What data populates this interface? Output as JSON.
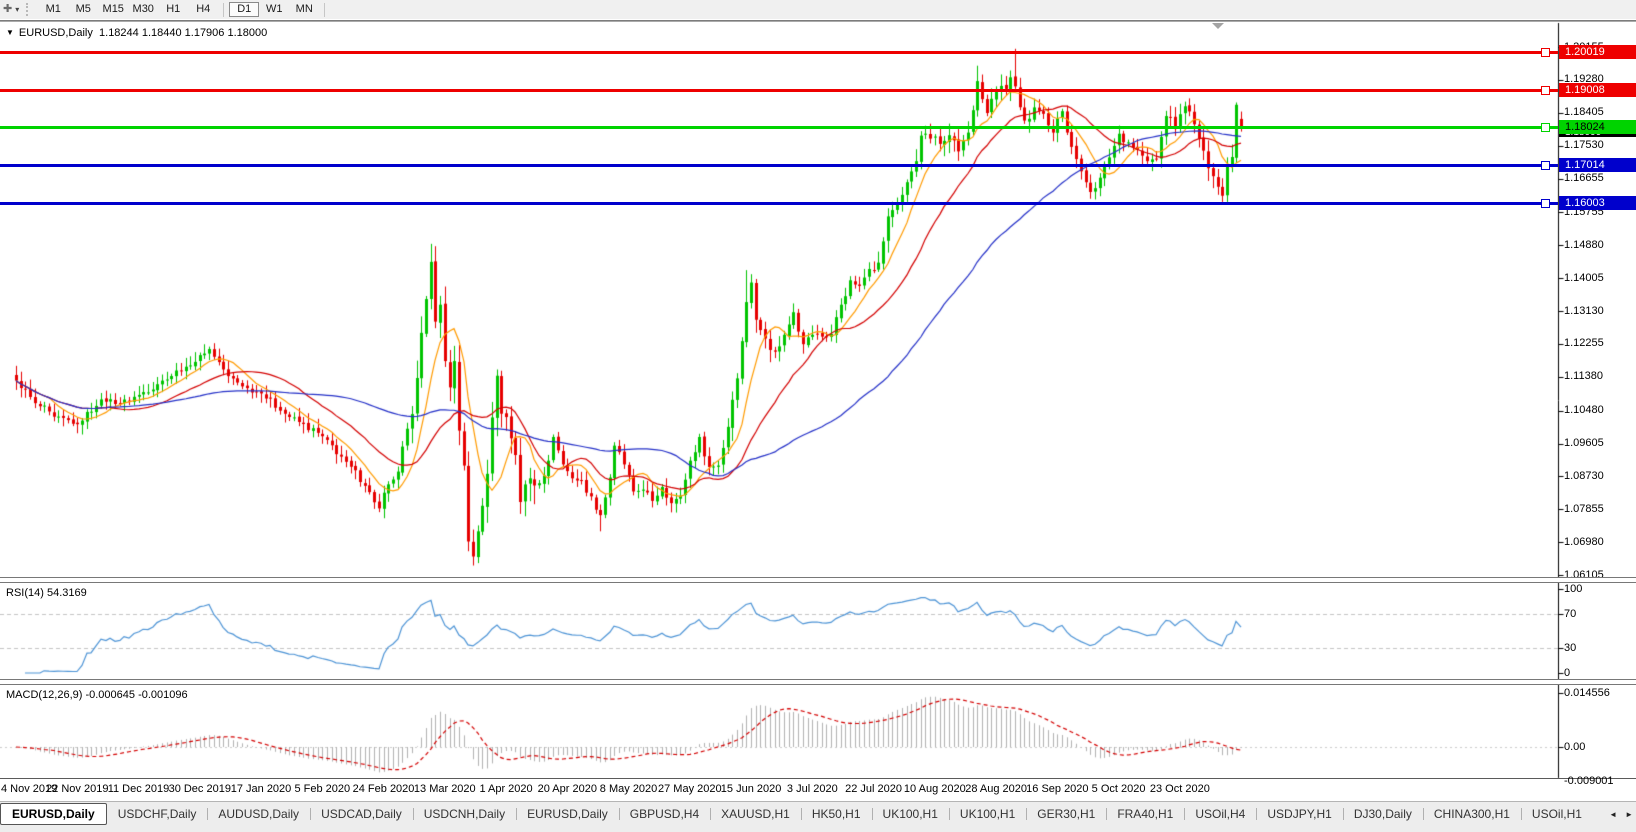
{
  "toolbar": {
    "cursor_tool_glyph": "✚",
    "dropdown_caret": "▾",
    "timeframes": [
      "M1",
      "M5",
      "M15",
      "M30",
      "H1",
      "H4",
      "D1",
      "W1",
      "MN"
    ],
    "selected_timeframe": "D1"
  },
  "main_chart": {
    "collapse_caret": "▼",
    "symbol": "EURUSD,Daily",
    "ohlc_text": "1.18244 1.18440 1.17906 1.18000",
    "bid_badge": "1.18000",
    "price_ticks": [
      "1.20155",
      "1.19280",
      "1.18405",
      "1.17530",
      "1.16655",
      "1.15755",
      "1.14880",
      "1.14005",
      "1.13130",
      "1.12255",
      "1.11380",
      "1.10480",
      "1.09605",
      "1.08730",
      "1.07855",
      "1.06980",
      "1.06105"
    ],
    "levels": [
      {
        "price": 1.20019,
        "label": "1.20019",
        "color": "#ee0000",
        "text_color": "#ffffff"
      },
      {
        "price": 1.19008,
        "label": "1.19008",
        "color": "#ee0000",
        "text_color": "#ffffff"
      },
      {
        "price": 1.18024,
        "label": "1.18024",
        "color": "#00d300",
        "text_color": "#000000",
        "bid_underlay": true
      },
      {
        "price": 1.17014,
        "label": "1.17014",
        "color": "#0000cc",
        "text_color": "#ffffff"
      },
      {
        "price": 1.16003,
        "label": "1.16003",
        "color": "#0000cc",
        "text_color": "#ffffff"
      }
    ]
  },
  "chart_data": {
    "type": "candlestick",
    "symbol": "EURUSD",
    "timeframe": "Daily",
    "bar_count": 261,
    "bars_per_label": 13,
    "ylim": [
      1.0605,
      1.2077
    ],
    "up_color": "#00c400",
    "down_color": "#e60000",
    "close_anchors": [
      [
        0,
        1.1128
      ],
      [
        4,
        1.1068
      ],
      [
        8,
        1.1032
      ],
      [
        13,
        1.1012
      ],
      [
        18,
        1.1078
      ],
      [
        22,
        1.1068
      ],
      [
        26,
        1.109
      ],
      [
        31,
        1.1128
      ],
      [
        36,
        1.1165
      ],
      [
        40,
        1.12
      ],
      [
        41,
        1.1212
      ],
      [
        45,
        1.114
      ],
      [
        49,
        1.1108
      ],
      [
        52,
        1.1094
      ],
      [
        56,
        1.1048
      ],
      [
        60,
        1.1018
      ],
      [
        65,
        1.098
      ],
      [
        70,
        1.0912
      ],
      [
        74,
        1.0848
      ],
      [
        77,
        1.0788
      ],
      [
        79,
        1.0852
      ],
      [
        81,
        1.0886
      ],
      [
        83,
        1.1
      ],
      [
        85,
        1.1135
      ],
      [
        87,
        1.1345
      ],
      [
        88,
        1.1444
      ],
      [
        89,
        1.1285
      ],
      [
        90,
        1.133
      ],
      [
        91,
        1.118
      ],
      [
        92,
        1.111
      ],
      [
        93,
        1.118
      ],
      [
        94,
        1.0995
      ],
      [
        95,
        1.0902
      ],
      [
        96,
        1.07
      ],
      [
        97,
        1.066
      ],
      [
        98,
        1.0727
      ],
      [
        99,
        1.0795
      ],
      [
        100,
        1.088
      ],
      [
        101,
        1.103
      ],
      [
        102,
        1.1141
      ],
      [
        103,
        1.104
      ],
      [
        104,
        1.1031
      ],
      [
        106,
        1.093
      ],
      [
        107,
        1.0805
      ],
      [
        109,
        1.0868
      ],
      [
        111,
        1.0855
      ],
      [
        113,
        1.0915
      ],
      [
        114,
        1.0978
      ],
      [
        116,
        1.0905
      ],
      [
        118,
        1.0868
      ],
      [
        120,
        1.0862
      ],
      [
        122,
        1.082
      ],
      [
        124,
        1.077
      ],
      [
        126,
        1.087
      ],
      [
        127,
        1.0955
      ],
      [
        129,
        1.0905
      ],
      [
        131,
        1.0833
      ],
      [
        133,
        1.0838
      ],
      [
        135,
        1.0808
      ],
      [
        137,
        1.0845
      ],
      [
        139,
        1.0802
      ],
      [
        141,
        1.0822
      ],
      [
        143,
        1.0915
      ],
      [
        145,
        1.0978
      ],
      [
        147,
        1.0898
      ],
      [
        149,
        1.0902
      ],
      [
        151,
        1.1005
      ],
      [
        152,
        1.1077
      ],
      [
        153,
        1.1134
      ],
      [
        154,
        1.1233
      ],
      [
        155,
        1.1337
      ],
      [
        156,
        1.1389
      ],
      [
        157,
        1.129
      ],
      [
        159,
        1.124
      ],
      [
        161,
        1.1205
      ],
      [
        163,
        1.125
      ],
      [
        165,
        1.131
      ],
      [
        167,
        1.1225
      ],
      [
        169,
        1.125
      ],
      [
        171,
        1.1245
      ],
      [
        173,
        1.1252
      ],
      [
        175,
        1.133
      ],
      [
        177,
        1.1395
      ],
      [
        179,
        1.138
      ],
      [
        181,
        1.1425
      ],
      [
        183,
        1.1442
      ],
      [
        185,
        1.1565
      ],
      [
        187,
        1.16
      ],
      [
        189,
        1.1656
      ],
      [
        191,
        1.1712
      ],
      [
        192,
        1.178
      ],
      [
        194,
        1.1772
      ],
      [
        196,
        1.1758
      ],
      [
        198,
        1.1781
      ],
      [
        200,
        1.1738
      ],
      [
        202,
        1.1788
      ],
      [
        204,
        1.1925
      ],
      [
        206,
        1.184
      ],
      [
        208,
        1.1902
      ],
      [
        210,
        1.1903
      ],
      [
        211,
        1.1935
      ],
      [
        212,
        1.1911
      ],
      [
        214,
        1.182
      ],
      [
        216,
        1.1855
      ],
      [
        218,
        1.1838
      ],
      [
        220,
        1.1788
      ],
      [
        222,
        1.1845
      ],
      [
        224,
        1.175
      ],
      [
        226,
        1.1685
      ],
      [
        228,
        1.163
      ],
      [
        230,
        1.1668
      ],
      [
        232,
        1.1722
      ],
      [
        234,
        1.1785
      ],
      [
        236,
        1.1762
      ],
      [
        238,
        1.1742
      ],
      [
        240,
        1.1712
      ],
      [
        242,
        1.1718
      ],
      [
        244,
        1.1832
      ],
      [
        246,
        1.1798
      ],
      [
        248,
        1.1858
      ],
      [
        250,
        1.181
      ],
      [
        252,
        1.174
      ],
      [
        254,
        1.1672
      ],
      [
        256,
        1.162
      ],
      [
        257,
        1.17
      ],
      [
        258,
        1.1723
      ],
      [
        259,
        1.1862
      ],
      [
        260,
        1.18
      ]
    ],
    "forced_points": {
      "77": {
        "l": 1.0778
      },
      "88": {
        "h": 1.1492
      },
      "97": {
        "l": 1.0636
      },
      "124": {
        "l": 1.0727
      },
      "155": {
        "h": 1.1422
      },
      "204": {
        "h": 1.1966
      },
      "212": {
        "h": 1.2011
      },
      "228": {
        "l": 1.1612
      },
      "256": {
        "l": 1.1603
      },
      "260": {
        "o": 1.18244,
        "h": 1.1844,
        "l": 1.17906,
        "c": 1.18
      }
    },
    "overlays": [
      {
        "name": "ma-fast",
        "period": 8,
        "color": "#ff9b00"
      },
      {
        "name": "ma-medium",
        "period": 21,
        "color": "#d40000"
      },
      {
        "name": "ma-slow",
        "period": 55,
        "color": "#2430c8"
      }
    ]
  },
  "rsi_panel": {
    "label": "RSI(14) 54.3169",
    "period": 14,
    "value": "54.3169",
    "ticks": [
      "100",
      "70",
      "30",
      "0"
    ],
    "guides": [
      70,
      30
    ],
    "line_color": "#4d94d6"
  },
  "macd_panel": {
    "label": "MACD(12,26,9) -0.000645 -0.001096",
    "values": "-0.000645 -0.001096",
    "ticks": [
      "0.014556",
      "0.00",
      "-0.009001"
    ],
    "histogram_color": "#b2b2b2",
    "signal_color": "#d40000"
  },
  "date_axis": [
    "4 Nov 2019",
    "22 Nov 2019",
    "11 Dec 2019",
    "30 Dec 2019",
    "17 Jan 2020",
    "5 Feb 2020",
    "24 Feb 2020",
    "13 Mar 2020",
    "1 Apr 2020",
    "20 Apr 2020",
    "8 May 2020",
    "27 May 2020",
    "15 Jun 2020",
    "3 Jul 2020",
    "22 Jul 2020",
    "10 Aug 2020",
    "28 Aug 2020",
    "16 Sep 2020",
    "5 Oct 2020",
    "23 Oct 2020"
  ],
  "tabs": {
    "items": [
      {
        "label": "EURUSD,Daily",
        "active": true
      },
      {
        "label": "USDCHF,Daily"
      },
      {
        "label": "AUDUSD,Daily"
      },
      {
        "label": "USDCAD,Daily"
      },
      {
        "label": "USDCNH,Daily"
      },
      {
        "label": "EURUSD,Daily"
      },
      {
        "label": "GBPUSD,H4"
      },
      {
        "label": "XAUUSD,H1"
      },
      {
        "label": "HK50,H1"
      },
      {
        "label": "UK100,H1"
      },
      {
        "label": "UK100,H1"
      },
      {
        "label": "GER30,H1"
      },
      {
        "label": "FRA40,H1"
      },
      {
        "label": "USOil,H4"
      },
      {
        "label": "USDJPY,H1"
      },
      {
        "label": "DJ30,Daily"
      },
      {
        "label": "CHINA300,H1"
      },
      {
        "label": "USOil,H1"
      }
    ],
    "scroll_left": "◄",
    "scroll_right": "►"
  }
}
